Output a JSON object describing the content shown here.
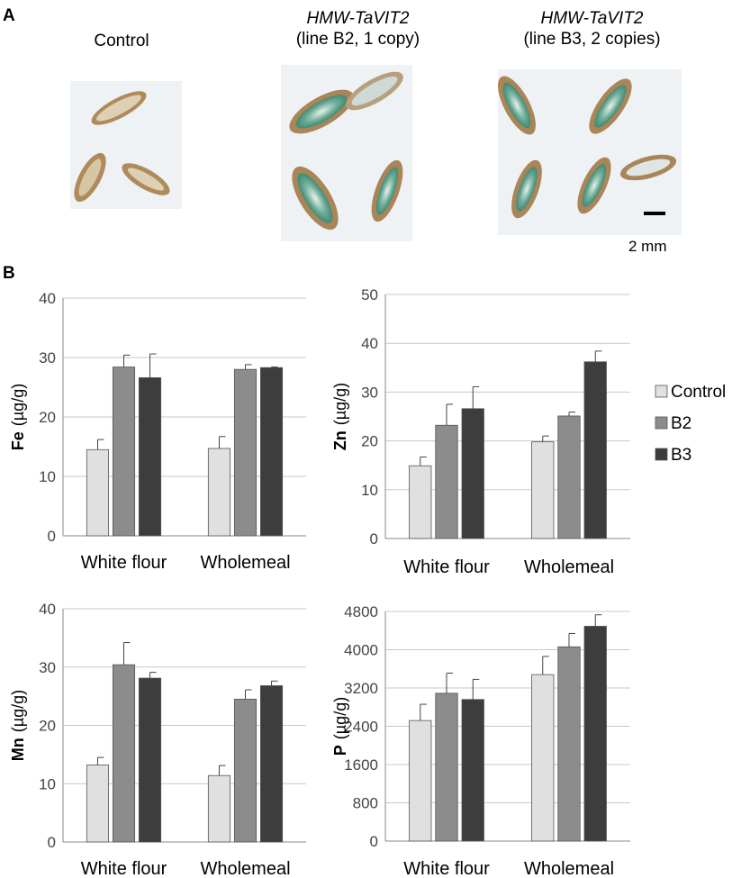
{
  "panel_a": {
    "letter": "A",
    "captions": [
      {
        "line1": "Control",
        "line2": ""
      },
      {
        "line1": "HMW-TaVIT2",
        "line2": "(line B2, 1 copy)"
      },
      {
        "line1": "HMW-TaVIT2",
        "line2": "(line B3, 2 copies)"
      }
    ],
    "scale_bar_label": "2 mm",
    "grain_colors": {
      "husk": "#b08a5a",
      "inner": "#ddd0b4",
      "stain": "#4f9a86",
      "background": "#eef2f4"
    }
  },
  "panel_b": {
    "letter": "B"
  },
  "legend": {
    "entries": [
      {
        "label": "Control",
        "color": "#e0e0e0"
      },
      {
        "label": "B2",
        "color": "#8c8c8c"
      },
      {
        "label": "B3",
        "color": "#3d3d3d"
      }
    ]
  },
  "chart_data": [
    {
      "type": "bar",
      "element": "Fe",
      "ylabel": "Fe",
      "yunit": "(µg/g)",
      "categories": [
        "White flour",
        "Wholemeal"
      ],
      "ylim": [
        0,
        40
      ],
      "yticks": [
        0,
        10,
        20,
        30,
        40
      ],
      "grid": true,
      "series": [
        {
          "name": "Control",
          "values": [
            14.5,
            14.7
          ],
          "errors": [
            1.7,
            2.0
          ]
        },
        {
          "name": "B2",
          "values": [
            28.4,
            28.0
          ],
          "errors": [
            2.0,
            0.8
          ]
        },
        {
          "name": "B3",
          "values": [
            26.6,
            28.3
          ],
          "errors": [
            4.0,
            0.1
          ]
        }
      ]
    },
    {
      "type": "bar",
      "element": "Zn",
      "ylabel": "Zn",
      "yunit": "(µg/g)",
      "categories": [
        "White flour",
        "Wholemeal"
      ],
      "ylim": [
        0,
        50
      ],
      "yticks": [
        0,
        10,
        20,
        30,
        40,
        50
      ],
      "grid": true,
      "series": [
        {
          "name": "Control",
          "values": [
            14.9,
            19.8
          ],
          "errors": [
            1.8,
            1.2
          ]
        },
        {
          "name": "B2",
          "values": [
            23.2,
            25.1
          ],
          "errors": [
            4.3,
            0.8
          ]
        },
        {
          "name": "B3",
          "values": [
            26.6,
            36.2
          ],
          "errors": [
            4.5,
            2.2
          ]
        }
      ]
    },
    {
      "type": "bar",
      "element": "Mn",
      "ylabel": "Mn",
      "yunit": "(µg/g)",
      "categories": [
        "White flour",
        "Wholemeal"
      ],
      "ylim": [
        0,
        40
      ],
      "yticks": [
        0,
        10,
        20,
        30,
        40
      ],
      "grid": true,
      "series": [
        {
          "name": "Control",
          "values": [
            13.2,
            11.4
          ],
          "errors": [
            1.3,
            1.7
          ]
        },
        {
          "name": "B2",
          "values": [
            30.4,
            24.5
          ],
          "errors": [
            3.8,
            1.6
          ]
        },
        {
          "name": "B3",
          "values": [
            28.1,
            26.8
          ],
          "errors": [
            1.0,
            0.8
          ]
        }
      ]
    },
    {
      "type": "bar",
      "element": "P",
      "ylabel": "P",
      "yunit": "(µg/g)",
      "categories": [
        "White flour",
        "Wholemeal"
      ],
      "ylim": [
        0,
        4800
      ],
      "yticks": [
        0,
        800,
        1600,
        2400,
        3200,
        4000,
        4800
      ],
      "grid": true,
      "series": [
        {
          "name": "Control",
          "values": [
            2520,
            3480
          ],
          "errors": [
            340,
            380
          ]
        },
        {
          "name": "B2",
          "values": [
            3090,
            4060
          ],
          "errors": [
            420,
            280
          ]
        },
        {
          "name": "B3",
          "values": [
            2960,
            4490
          ],
          "errors": [
            420,
            240
          ]
        }
      ]
    }
  ]
}
